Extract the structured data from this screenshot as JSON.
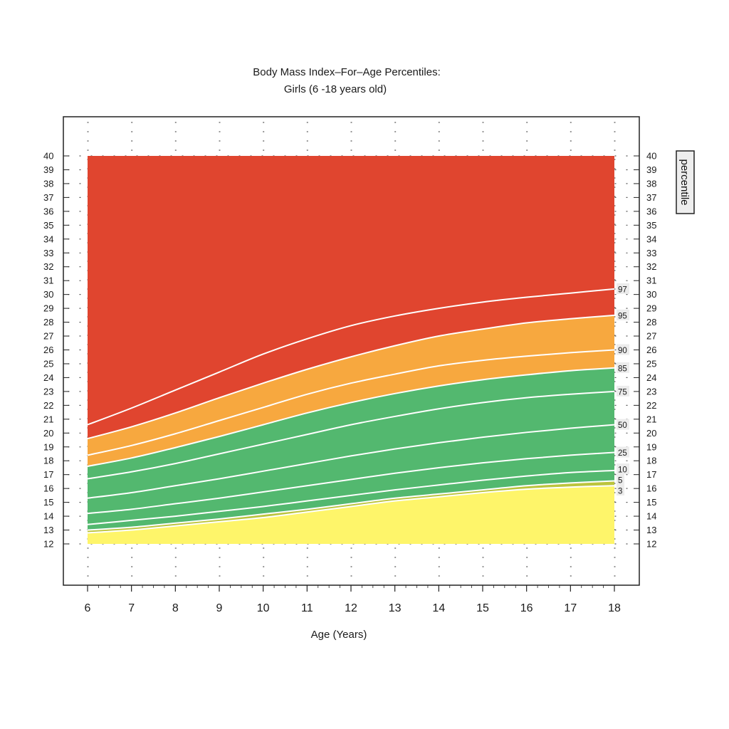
{
  "chart_data": {
    "type": "area",
    "title": "Body Mass Index–For–Age Percentiles:",
    "subtitle": "Girls (6 -18 years old)",
    "xlabel": "Age (Years)",
    "ylabel": "",
    "xlim": [
      6,
      18
    ],
    "ylim": [
      12,
      40
    ],
    "x_ticks": [
      "6",
      "7",
      "8",
      "9",
      "10",
      "11",
      "12",
      "13",
      "14",
      "15",
      "16",
      "17",
      "18"
    ],
    "y_ticks": [
      "12",
      "13",
      "14",
      "15",
      "16",
      "17",
      "18",
      "19",
      "20",
      "21",
      "22",
      "23",
      "24",
      "25",
      "26",
      "27",
      "28",
      "29",
      "30",
      "31",
      "32",
      "33",
      "34",
      "35",
      "36",
      "37",
      "38",
      "39",
      "40"
    ],
    "grid": "dotted",
    "legend_title": "percentile",
    "legend_position": "right",
    "x": [
      6,
      7,
      8,
      9,
      10,
      11,
      12,
      13,
      14,
      15,
      16,
      17,
      18
    ],
    "series": [
      {
        "name": "3",
        "values": [
          12.8,
          13.0,
          13.3,
          13.6,
          13.9,
          14.3,
          14.7,
          15.1,
          15.4,
          15.7,
          15.95,
          16.1,
          16.2
        ]
      },
      {
        "name": "5",
        "values": [
          13.0,
          13.2,
          13.5,
          13.8,
          14.15,
          14.5,
          14.9,
          15.3,
          15.6,
          15.9,
          16.2,
          16.4,
          16.55
        ]
      },
      {
        "name": "10",
        "values": [
          13.4,
          13.7,
          14.0,
          14.35,
          14.7,
          15.1,
          15.5,
          15.9,
          16.25,
          16.6,
          16.9,
          17.15,
          17.3
        ]
      },
      {
        "name": "25",
        "values": [
          14.2,
          14.5,
          14.9,
          15.3,
          15.75,
          16.2,
          16.65,
          17.1,
          17.5,
          17.85,
          18.15,
          18.4,
          18.6
        ]
      },
      {
        "name": "50",
        "values": [
          15.3,
          15.7,
          16.2,
          16.7,
          17.25,
          17.8,
          18.35,
          18.85,
          19.3,
          19.7,
          20.05,
          20.35,
          20.6
        ]
      },
      {
        "name": "75",
        "values": [
          16.7,
          17.2,
          17.8,
          18.5,
          19.2,
          19.9,
          20.6,
          21.2,
          21.75,
          22.2,
          22.55,
          22.8,
          23.0
        ]
      },
      {
        "name": "85",
        "values": [
          17.6,
          18.2,
          18.95,
          19.75,
          20.6,
          21.45,
          22.2,
          22.85,
          23.4,
          23.85,
          24.2,
          24.5,
          24.7
        ]
      },
      {
        "name": "90",
        "values": [
          18.4,
          19.1,
          19.95,
          20.9,
          21.85,
          22.8,
          23.6,
          24.25,
          24.85,
          25.25,
          25.55,
          25.8,
          26.0
        ]
      },
      {
        "name": "95",
        "values": [
          19.6,
          20.45,
          21.45,
          22.55,
          23.6,
          24.6,
          25.5,
          26.3,
          27.0,
          27.5,
          27.95,
          28.25,
          28.5
        ]
      },
      {
        "name": "97",
        "values": [
          20.6,
          21.8,
          23.1,
          24.4,
          25.7,
          26.8,
          27.75,
          28.45,
          29.0,
          29.45,
          29.8,
          30.1,
          30.4
        ]
      }
    ],
    "bands": [
      {
        "from": "bottom",
        "to": "3",
        "color": "#fef56a"
      },
      {
        "from": "3",
        "to": "5",
        "color": "#bcc43c"
      },
      {
        "from": "5",
        "to": "85",
        "color": "#53b86f"
      },
      {
        "from": "85",
        "to": "95",
        "color": "#f7a83f"
      },
      {
        "from": "95",
        "to": "top",
        "color": "#e0452f"
      }
    ],
    "colors": {
      "grid_dot": "#555555",
      "curve": "#ffffff",
      "label_bg": "#ececec",
      "legend_bg": "#eeeeee",
      "frame": "#222222"
    }
  }
}
